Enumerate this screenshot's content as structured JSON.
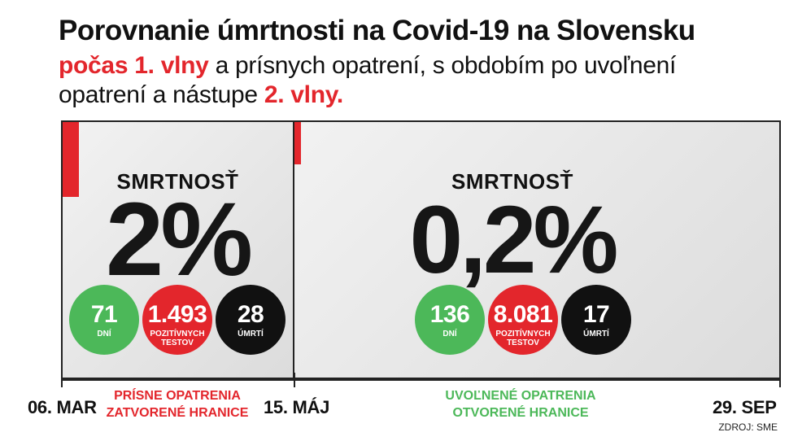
{
  "title": "Porovnanie úmrtnosti na Covid-19 na Slovensku",
  "subtitle": {
    "wave1": "počas 1. vlny",
    "part1": " a prísnych opatrení, s obdobím po uvoľnení",
    "part2": "opatrení a nástupe ",
    "wave2": "2. vlny."
  },
  "colors": {
    "red": "#e3262c",
    "green": "#4cb859",
    "black": "#111111"
  },
  "chart_data": {
    "type": "table",
    "periods": [
      {
        "metric_label": "SMRTNOSŤ",
        "mortality_value": "2%",
        "days": "71",
        "days_label": "DNÍ",
        "positive_tests": "1.493",
        "positive_tests_label_1": "POZITÍVNYCH",
        "positive_tests_label_2": "TESTOV",
        "deaths": "28",
        "deaths_label": "ÚMRTÍ",
        "phase_line_1": "PRÍSNE OPATRENIA",
        "phase_line_2": "ZATVORENÉ HRANICE",
        "phase_color": "#e3262c"
      },
      {
        "metric_label": "SMRTNOSŤ",
        "mortality_value": "0,2%",
        "days": "136",
        "days_label": "DNÍ",
        "positive_tests": "8.081",
        "positive_tests_label_1": "POZITÍVNYCH",
        "positive_tests_label_2": "TESTOV",
        "deaths": "17",
        "deaths_label": "ÚMRTÍ",
        "phase_line_1": "UVOĽNENÉ OPATRENIA",
        "phase_line_2": "OTVORENÉ HRANICE",
        "phase_color": "#4cb859"
      }
    ],
    "timeline": [
      "06. MAR",
      "15. MÁJ",
      "29. SEP"
    ]
  },
  "source": "ZDROJ: SME"
}
